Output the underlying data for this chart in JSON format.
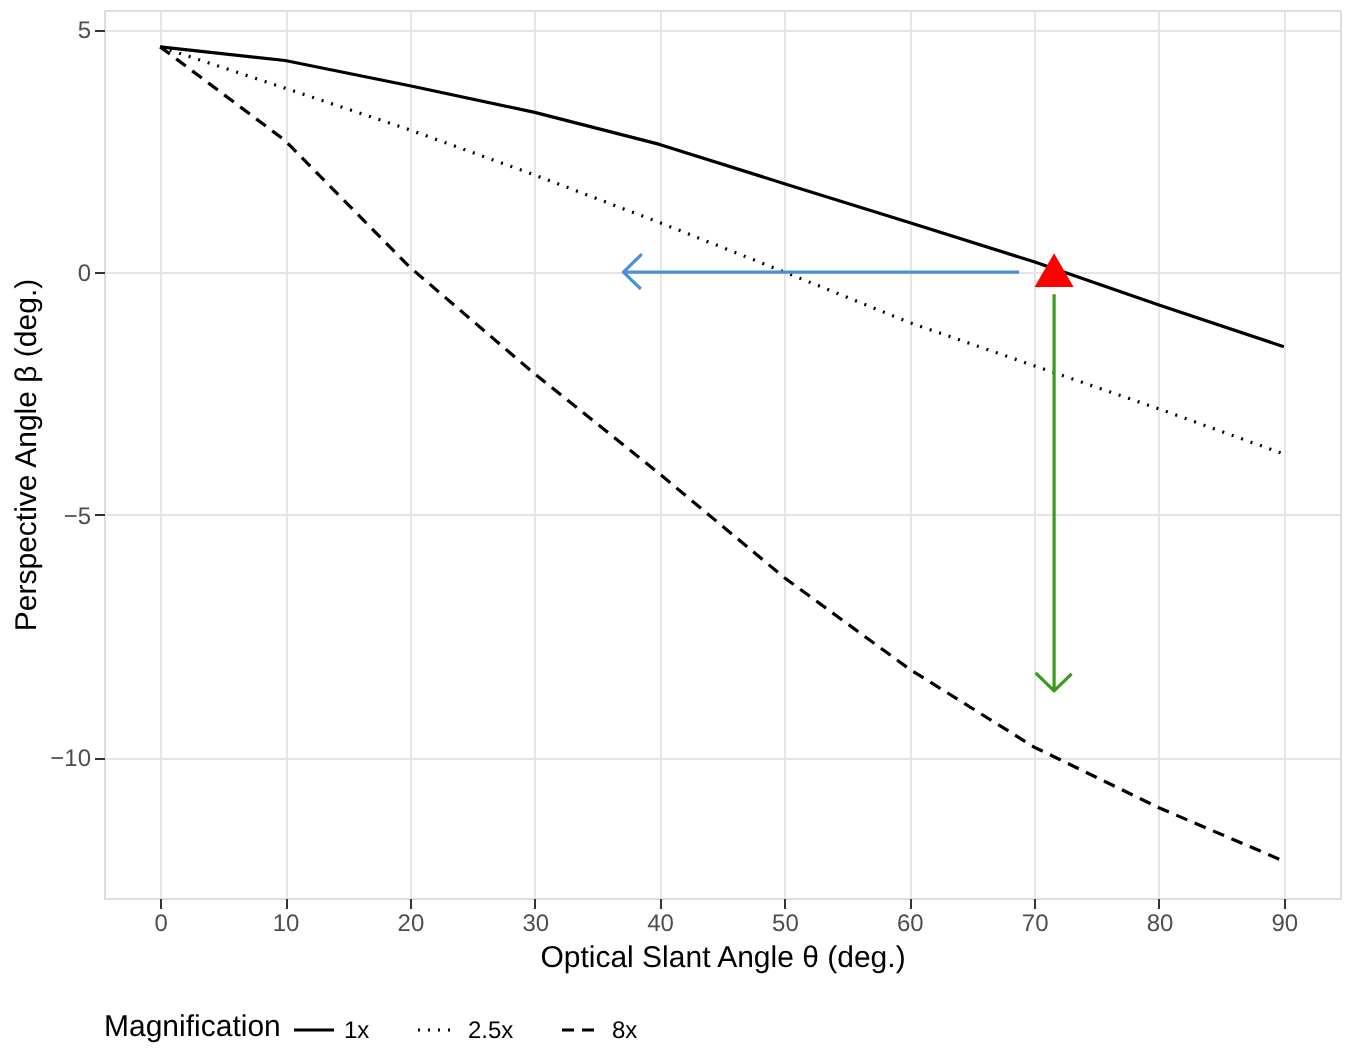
{
  "chart_data": {
    "type": "line",
    "xlabel": "Optical Slant Angle θ (deg.)",
    "ylabel": "Perspective Angle β (deg.)",
    "legend_title": "Magnification",
    "legend": "bottom",
    "grid": true,
    "x": [
      0,
      10,
      20,
      30,
      40,
      50,
      60,
      70,
      80,
      90
    ],
    "xlim": [
      -4.5,
      94.5
    ],
    "xticks": [
      0,
      10,
      20,
      30,
      40,
      50,
      60,
      70,
      80,
      90
    ],
    "ylim": [
      -12.9,
      5.4
    ],
    "yticks": [
      -10,
      -5,
      0,
      5
    ],
    "series": [
      {
        "name": "1x",
        "color": "#000000",
        "line_style": "solid",
        "values": [
          4.64,
          4.36,
          3.84,
          3.29,
          2.63,
          1.82,
          1.02,
          0.21,
          -0.68,
          -1.54
        ]
      },
      {
        "name": "2.5x",
        "color": "#000000",
        "line_style": "dotted",
        "values": [
          4.64,
          3.79,
          2.93,
          2.0,
          1.02,
          0.0,
          -1.04,
          -1.93,
          -2.82,
          -3.75
        ]
      },
      {
        "name": "8x",
        "color": "#000000",
        "line_style": "dashed",
        "values": [
          4.64,
          2.71,
          0.1,
          -2.1,
          -4.16,
          -6.3,
          -8.18,
          -9.79,
          -11.04,
          -12.14
        ]
      },
      {
        "type": "scatter",
        "marker": "triangle",
        "color": "#ff0000",
        "x": [
          71.6
        ],
        "values": [
          0.04
        ]
      }
    ]
  }
}
